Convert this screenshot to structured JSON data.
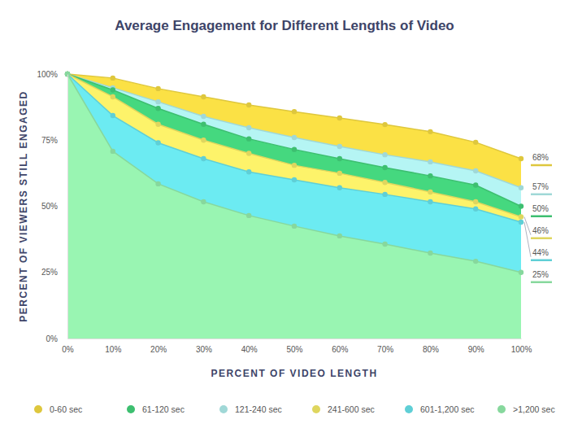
{
  "chart_data": {
    "type": "area",
    "title": "Average Engagement for Different Lengths of Video",
    "x_label": "PERCENT OF VIDEO LENGTH",
    "y_label": "PERCENT OF VIEWERS STILL ENGAGED",
    "x": [
      0,
      10,
      20,
      30,
      40,
      50,
      60,
      70,
      80,
      90,
      100
    ],
    "xlim": [
      0,
      100
    ],
    "xticks": [
      {
        "value": 0,
        "label": "0%"
      },
      {
        "value": 10,
        "label": "10%"
      },
      {
        "value": 20,
        "label": "20%"
      },
      {
        "value": 30,
        "label": "30%"
      },
      {
        "value": 40,
        "label": "40%"
      },
      {
        "value": 50,
        "label": "50%"
      },
      {
        "value": 60,
        "label": "60%"
      },
      {
        "value": 70,
        "label": "70%"
      },
      {
        "value": 80,
        "label": "80%"
      },
      {
        "value": 90,
        "label": "90%"
      },
      {
        "value": 100,
        "label": "100%"
      }
    ],
    "ylim": [
      0,
      100
    ],
    "yticks": [
      {
        "value": 0,
        "label": "0%"
      },
      {
        "value": 25,
        "label": "25%"
      },
      {
        "value": 50,
        "label": "50%"
      },
      {
        "value": 75,
        "label": "75%"
      },
      {
        "value": 100,
        "label": "100%"
      }
    ],
    "grid": false,
    "legend": "bottom",
    "marker": "circle",
    "series": [
      {
        "name": "0-60 sec",
        "color": "#fbe145",
        "values": [
          100,
          98.5,
          94.5,
          91.4,
          88.3,
          85.8,
          83.4,
          80.9,
          78.2,
          74.2,
          68
        ],
        "value_labels": [
          null,
          null,
          null,
          null,
          null,
          null,
          null,
          null,
          null,
          null,
          "68%"
        ]
      },
      {
        "name": "61-120 sec",
        "color": "#45d87f",
        "values": [
          100,
          94,
          87,
          81,
          75.5,
          71.5,
          68,
          64.6,
          61.5,
          58,
          50
        ],
        "value_labels": [
          null,
          null,
          null,
          null,
          null,
          null,
          null,
          null,
          null,
          null,
          "50%"
        ]
      },
      {
        "name": "121-240 sec",
        "color": "#b5f5f4",
        "values": [
          100,
          94.8,
          89.5,
          84,
          79.7,
          76,
          72.6,
          69.5,
          66.8,
          63.4,
          57
        ],
        "value_labels": [
          null,
          null,
          null,
          null,
          null,
          null,
          null,
          null,
          null,
          null,
          "57%"
        ]
      },
      {
        "name": "241-600 sec",
        "color": "#fdf36a",
        "values": [
          100,
          91.4,
          81,
          75,
          70,
          65.5,
          62.5,
          59,
          55.4,
          51.7,
          46
        ],
        "value_labels": [
          null,
          null,
          null,
          null,
          null,
          null,
          null,
          null,
          null,
          null,
          "46%"
        ]
      },
      {
        "name": "601-1,200 sec",
        "color": "#6cebf2",
        "values": [
          100,
          84.3,
          74,
          68,
          63,
          60,
          57,
          54.5,
          51.7,
          49,
          44
        ],
        "value_labels": [
          null,
          null,
          null,
          null,
          null,
          null,
          null,
          null,
          null,
          null,
          "44%"
        ]
      },
      {
        "name": ">1,200 sec",
        "color": "#99f5b2",
        "values": [
          100,
          70.8,
          58.5,
          51.7,
          46.5,
          42.5,
          38.8,
          35.7,
          32.3,
          29.2,
          25
        ],
        "value_labels": [
          null,
          null,
          null,
          null,
          null,
          null,
          null,
          null,
          null,
          null,
          "25%"
        ]
      }
    ]
  }
}
